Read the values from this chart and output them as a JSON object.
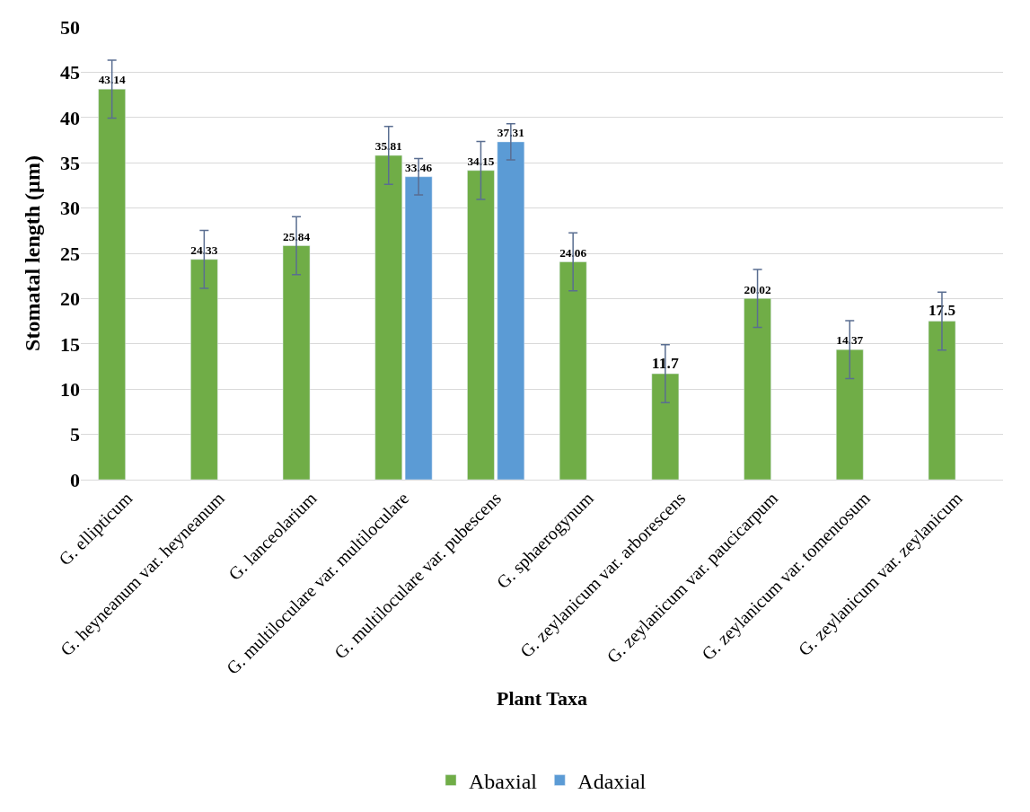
{
  "chart_data": {
    "type": "bar",
    "xlabel": "Plant Taxa",
    "ylabel": "Stomatal length (µm)",
    "categories": [
      "G. ellipticum",
      "G. heyneanum var. heyneanum",
      "G. lanceolarium",
      "G. multiloculare var. multiloculare",
      "G. multiloculare var. pubescens",
      "G. sphaerogynum",
      "G. zeylanicum var. arborescens",
      "G. zeylanicum var. paucicarpum",
      "G. zeylanicum var. tomentosum",
      "G. zeylanicum var. zeylanicum"
    ],
    "series": [
      {
        "name": "Abaxial",
        "color": "#70ad47",
        "values": [
          43.14,
          24.33,
          25.84,
          35.81,
          34.15,
          24.06,
          11.7,
          20.02,
          14.37,
          17.5
        ],
        "errors": [
          3.2,
          3.2,
          3.2,
          3.2,
          3.2,
          3.2,
          3.2,
          3.2,
          3.2,
          3.2
        ]
      },
      {
        "name": "Adaxial",
        "color": "#5b9bd5",
        "values": [
          null,
          null,
          null,
          33.46,
          37.31,
          null,
          null,
          null,
          null,
          null
        ],
        "errors": [
          null,
          null,
          null,
          2,
          2,
          null,
          null,
          null,
          null,
          null
        ]
      }
    ],
    "ylim": [
      0,
      50
    ],
    "yticks": [
      0,
      5,
      10,
      15,
      20,
      25,
      30,
      35,
      40,
      45,
      50
    ],
    "grid": "y",
    "legend": "bottom",
    "data_labels": true
  }
}
